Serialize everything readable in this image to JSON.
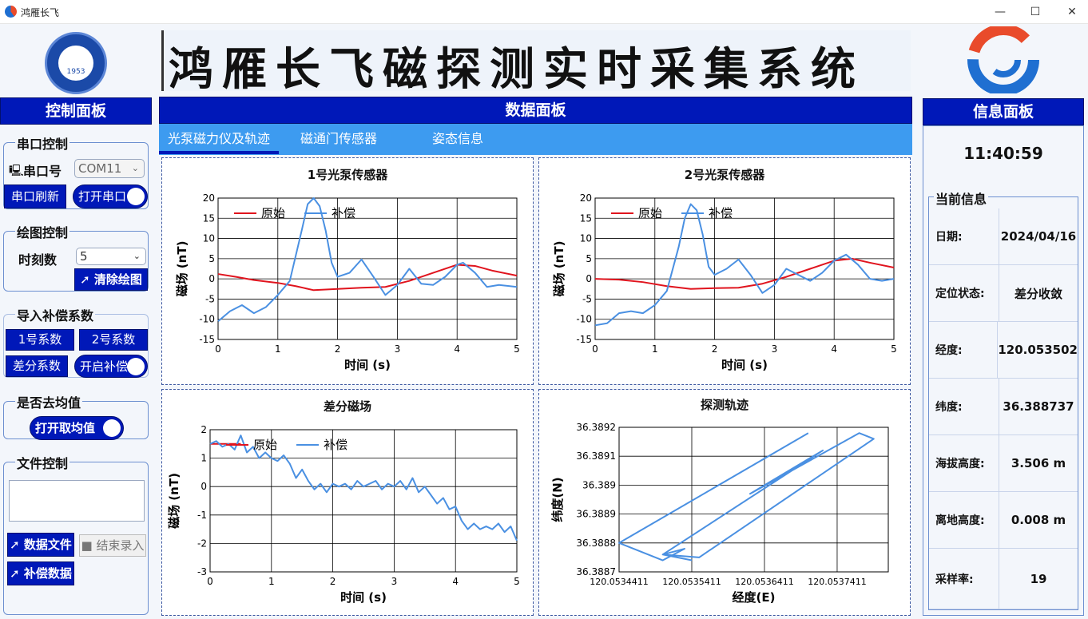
{
  "window": {
    "title": "鸿雁长飞",
    "min": "—",
    "max": "☐",
    "close": "✕"
  },
  "banner": {
    "title": "鸿雁长飞磁探测实时采集系统",
    "emblem_text": "1953"
  },
  "control": {
    "header": "控制面板",
    "serial": {
      "title": "串口控制",
      "port_label": "串口号",
      "port_value": "COM11",
      "refresh": "串口刷新",
      "open": "打开串口"
    },
    "plot": {
      "title": "绘图控制",
      "moments_label": "时刻数",
      "moments_value": "5",
      "clear": "清除绘图"
    },
    "comp": {
      "title": "导入补偿系数",
      "c1": "1号系数",
      "c2": "2号系数",
      "diff": "差分系数",
      "enable": "开启补偿"
    },
    "mean": {
      "title": "是否去均值",
      "toggle": "打开取均值"
    },
    "file": {
      "title": "文件控制",
      "data_file": "数据文件",
      "end": "结束录入",
      "comp_data": "补偿数据"
    }
  },
  "data_panel": {
    "header": "数据面板",
    "tabs": [
      "光泵磁力仪及轨迹",
      "磁通门传感器",
      "姿态信息"
    ],
    "active_tab": 0
  },
  "info": {
    "header": "信息面板",
    "time": "11:40:59",
    "section": "当前信息",
    "rows": [
      {
        "label": "日期:",
        "value": "2024/04/16"
      },
      {
        "label": "定位状态:",
        "value": "差分收敛"
      },
      {
        "label": "经度:",
        "value": "120.053502"
      },
      {
        "label": "纬度:",
        "value": "36.388737"
      },
      {
        "label": "海拔高度:",
        "value": "3.506 m"
      },
      {
        "label": "离地高度:",
        "value": "0.008 m"
      },
      {
        "label": "采样率:",
        "value": "19"
      }
    ]
  },
  "colors": {
    "panel_blue": "#0018b8",
    "tab_bar": "#3d9bf0",
    "raw": "#e0141e",
    "comp": "#4a90e2"
  },
  "chart_data": [
    {
      "type": "line",
      "title": "1号光泵传感器",
      "xlabel": "时间 (s)",
      "ylabel": "磁场 (nT)",
      "xlim": [
        0,
        5
      ],
      "ylim": [
        -15,
        20
      ],
      "xticks": [
        "0",
        "1",
        "2",
        "3",
        "4",
        "5"
      ],
      "yticks": [
        "20",
        "15",
        "10",
        "5",
        "0",
        "-5",
        "-10",
        "-15"
      ],
      "legend": "top-left",
      "series": [
        {
          "name": "原始",
          "color": "#e0141e",
          "x": [
            0,
            0.3,
            0.6,
            1.0,
            1.3,
            1.6,
            2.0,
            2.4,
            2.8,
            3.2,
            3.6,
            4.0,
            4.3,
            4.6,
            5.0
          ],
          "y": [
            1.2,
            0.5,
            -0.3,
            -1,
            -1.8,
            -2.8,
            -2.5,
            -2.2,
            -2,
            -0.5,
            1.5,
            3.5,
            3.2,
            2.0,
            0.8
          ]
        },
        {
          "name": "补偿",
          "color": "#4a90e2",
          "x": [
            0,
            0.2,
            0.4,
            0.6,
            0.8,
            1.0,
            1.2,
            1.4,
            1.5,
            1.6,
            1.7,
            1.8,
            1.9,
            2.0,
            2.2,
            2.4,
            2.6,
            2.8,
            3.0,
            3.2,
            3.4,
            3.6,
            3.8,
            4.0,
            4.1,
            4.3,
            4.5,
            4.7,
            5.0
          ],
          "y": [
            -10.5,
            -8,
            -6.5,
            -8.5,
            -7,
            -4,
            -0.5,
            12,
            18.5,
            20,
            18,
            12,
            4,
            0.5,
            1.5,
            4.8,
            0.5,
            -4,
            -1.5,
            2.5,
            -1.2,
            -1.5,
            0.5,
            3.5,
            4,
            1.5,
            -2,
            -1.5,
            -2
          ]
        }
      ]
    },
    {
      "type": "line",
      "title": "2号光泵传感器",
      "xlabel": "时间 (s)",
      "ylabel": "磁场 (nT)",
      "xlim": [
        0,
        5
      ],
      "ylim": [
        -15,
        20
      ],
      "xticks": [
        "0",
        "1",
        "2",
        "3",
        "4",
        "5"
      ],
      "yticks": [
        "20",
        "15",
        "10",
        "5",
        "0",
        "-5",
        "-10",
        "-15"
      ],
      "legend": "top-left",
      "series": [
        {
          "name": "原始",
          "color": "#e0141e",
          "x": [
            0,
            0.4,
            0.8,
            1.2,
            1.6,
            2.0,
            2.4,
            2.8,
            3.2,
            3.6,
            4.0,
            4.3,
            4.6,
            5.0
          ],
          "y": [
            0,
            -0.2,
            -0.8,
            -1.8,
            -2.5,
            -2.3,
            -2.2,
            -1.2,
            0.5,
            2.5,
            4.5,
            5,
            4,
            2.8
          ]
        },
        {
          "name": "补偿",
          "color": "#4a90e2",
          "x": [
            0,
            0.2,
            0.4,
            0.6,
            0.8,
            1.0,
            1.2,
            1.4,
            1.5,
            1.6,
            1.7,
            1.8,
            1.9,
            2.0,
            2.2,
            2.4,
            2.6,
            2.8,
            3.0,
            3.2,
            3.4,
            3.6,
            3.8,
            4.0,
            4.2,
            4.4,
            4.6,
            4.8,
            5.0
          ],
          "y": [
            -11.5,
            -11,
            -8.5,
            -8,
            -8.5,
            -6.5,
            -3,
            8,
            15,
            18.5,
            17,
            11,
            3,
            1,
            2.5,
            4.8,
            1,
            -3.5,
            -1.5,
            2.5,
            1,
            -0.5,
            1.5,
            4.5,
            6,
            3.5,
            0,
            -0.5,
            0
          ]
        }
      ]
    },
    {
      "type": "line",
      "title": "差分磁场",
      "xlabel": "时间 (s)",
      "ylabel": "磁场 (nT)",
      "xlim": [
        0,
        5
      ],
      "ylim": [
        -3,
        2
      ],
      "xticks": [
        "0",
        "1",
        "2",
        "3",
        "4",
        "5"
      ],
      "yticks": [
        "2",
        "1",
        "0",
        "-1",
        "-2",
        "-3"
      ],
      "legend": "top-left",
      "series": [
        {
          "name": "原始",
          "color": "#e0141e",
          "x": [
            0,
            0.5
          ],
          "y": [
            1.5,
            1.5
          ]
        },
        {
          "name": "补偿",
          "color": "#4a90e2",
          "x": [
            0,
            0.1,
            0.2,
            0.3,
            0.4,
            0.5,
            0.6,
            0.7,
            0.8,
            0.9,
            1.0,
            1.1,
            1.2,
            1.3,
            1.4,
            1.5,
            1.6,
            1.7,
            1.8,
            1.9,
            2.0,
            2.1,
            2.2,
            2.3,
            2.4,
            2.5,
            2.6,
            2.7,
            2.8,
            2.9,
            3.0,
            3.1,
            3.2,
            3.3,
            3.4,
            3.5,
            3.6,
            3.7,
            3.8,
            3.9,
            4.0,
            4.1,
            4.2,
            4.3,
            4.4,
            4.5,
            4.6,
            4.7,
            4.8,
            4.9,
            5.0
          ],
          "y": [
            1.5,
            1.6,
            1.4,
            1.5,
            1.3,
            1.8,
            1.2,
            1.4,
            1.0,
            1.2,
            1.0,
            0.9,
            1.1,
            0.8,
            0.3,
            0.6,
            0.2,
            -0.1,
            0.1,
            -0.2,
            0.1,
            0.0,
            0.1,
            -0.1,
            0.2,
            0.0,
            0.1,
            0.2,
            -0.1,
            0.1,
            0.0,
            0.2,
            -0.1,
            0.3,
            -0.2,
            0.0,
            -0.3,
            -0.6,
            -0.4,
            -0.8,
            -0.7,
            -1.2,
            -1.5,
            -1.3,
            -1.5,
            -1.4,
            -1.5,
            -1.3,
            -1.6,
            -1.4,
            -1.9
          ]
        }
      ]
    },
    {
      "type": "line",
      "title": "探测轨迹",
      "xlabel": "经度(E)",
      "ylabel": "纬度(N)",
      "xlim": [
        120.0534411,
        120.0538111
      ],
      "ylim": [
        36.3887,
        36.3892
      ],
      "xticks": [
        "120.0534411",
        "120.0535411",
        "120.0536411",
        "120.0537411"
      ],
      "yticks": [
        "36.3892",
        "36.3891",
        "36.389",
        "36.3889",
        "36.3888",
        "36.3887"
      ],
      "series": [
        {
          "name": "",
          "color": "#4a90e2",
          "x": [
            120.0537011,
            120.0534411,
            120.0535011,
            120.0535311,
            120.0535011,
            120.0537211,
            120.0536211,
            120.0537711,
            120.0537911,
            120.0535511,
            120.0535011,
            120.0535411
          ],
          "y": [
            36.38918,
            36.3888,
            36.38874,
            36.38878,
            36.38876,
            36.38912,
            36.38897,
            36.38918,
            36.38916,
            36.38875,
            36.38876,
            36.38874
          ]
        }
      ]
    }
  ]
}
